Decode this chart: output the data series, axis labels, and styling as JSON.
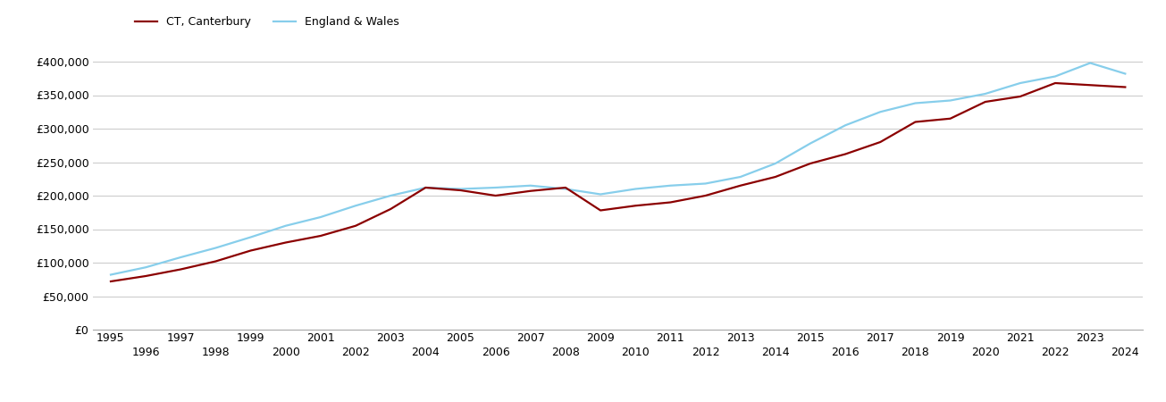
{
  "ct_canterbury": {
    "years": [
      1995,
      1996,
      1997,
      1998,
      1999,
      2000,
      2001,
      2002,
      2003,
      2004,
      2005,
      2006,
      2007,
      2008,
      2009,
      2010,
      2011,
      2012,
      2013,
      2014,
      2015,
      2016,
      2017,
      2018,
      2019,
      2020,
      2021,
      2022,
      2023,
      2024
    ],
    "values": [
      72000,
      80000,
      90000,
      102000,
      118000,
      130000,
      140000,
      155000,
      180000,
      212000,
      208000,
      200000,
      207000,
      212000,
      178000,
      185000,
      190000,
      200000,
      215000,
      228000,
      248000,
      262000,
      280000,
      310000,
      315000,
      340000,
      348000,
      368000,
      365000,
      362000
    ]
  },
  "england_wales": {
    "years": [
      1995,
      1996,
      1997,
      1998,
      1999,
      2000,
      2001,
      2002,
      2003,
      2004,
      2005,
      2006,
      2007,
      2008,
      2009,
      2010,
      2011,
      2012,
      2013,
      2014,
      2015,
      2016,
      2017,
      2018,
      2019,
      2020,
      2021,
      2022,
      2023,
      2024
    ],
    "values": [
      82000,
      93000,
      108000,
      122000,
      138000,
      155000,
      168000,
      185000,
      200000,
      212000,
      210000,
      212000,
      215000,
      210000,
      202000,
      210000,
      215000,
      218000,
      228000,
      248000,
      278000,
      305000,
      325000,
      338000,
      342000,
      352000,
      368000,
      378000,
      398000,
      382000
    ]
  },
  "ct_color": "#8B0000",
  "ew_color": "#87CEEB",
  "background_color": "#ffffff",
  "grid_color": "#cccccc",
  "ylim": [
    0,
    420000
  ],
  "yticks": [
    0,
    50000,
    100000,
    150000,
    200000,
    250000,
    300000,
    350000,
    400000
  ],
  "legend_ct": "CT, Canterbury",
  "legend_ew": "England & Wales",
  "line_width": 1.6
}
